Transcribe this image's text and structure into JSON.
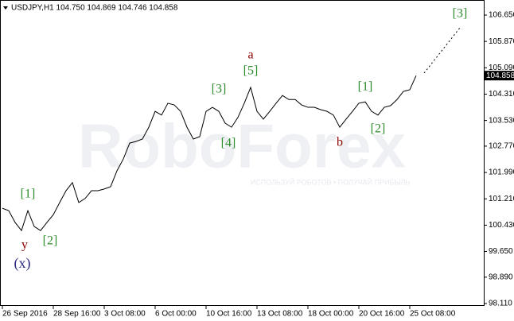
{
  "chart_data": {
    "type": "line",
    "title": "USDJPY,H1  104.750 104.869 104.746 104.858",
    "watermark": "RoboForex",
    "watermark_sub": "ИСПОЛЬЗУЙ РОБОТОВ • ПОЛУЧАЙ ПРИБЫЛЬ",
    "categories": [
      "26 Sep 2016",
      null,
      null,
      null,
      null,
      null,
      null,
      null,
      "28 Sep 16:00",
      null,
      null,
      null,
      null,
      null,
      null,
      null,
      "3 Oct 08:00",
      null,
      null,
      null,
      null,
      null,
      null,
      null,
      "6 Oct 00:00",
      null,
      null,
      null,
      null,
      null,
      null,
      null,
      "10 Oct 16:00",
      null,
      null,
      null,
      null,
      null,
      null,
      null,
      "13 Oct 08:00",
      null,
      null,
      null,
      null,
      null,
      null,
      null,
      "18 Oct 00:00",
      null,
      null,
      null,
      null,
      null,
      null,
      null,
      "20 Oct 16:00",
      null,
      null,
      null,
      null,
      null,
      null,
      null,
      "25 Oct 08:00",
      null
    ],
    "series": [
      {
        "name": "USDJPY",
        "color": "#000000",
        "values": [
          100.93,
          100.86,
          100.51,
          100.27,
          100.86,
          100.39,
          100.27,
          100.51,
          100.74,
          101.1,
          101.45,
          101.69,
          101.1,
          101.22,
          101.45,
          101.45,
          101.5,
          101.57,
          102.04,
          102.39,
          102.86,
          102.91,
          102.98,
          103.33,
          103.8,
          103.69,
          104.04,
          103.99,
          103.8,
          103.33,
          102.98,
          103.05,
          103.8,
          103.92,
          103.8,
          103.45,
          103.33,
          103.62,
          104.04,
          104.51,
          103.8,
          103.57,
          103.8,
          104.04,
          104.27,
          104.15,
          104.15,
          103.99,
          103.92,
          103.92,
          103.85,
          103.8,
          103.69,
          103.33,
          103.57,
          103.8,
          104.04,
          104.08,
          103.8,
          103.69,
          103.92,
          103.97,
          104.15,
          104.39,
          104.44,
          104.858
        ]
      }
    ],
    "current_price": 104.858,
    "ylim": [
      98.11,
      106.65
    ],
    "yticks": [
      {
        "value": 98.11,
        "label": "98.110"
      },
      {
        "value": 98.89,
        "label": "98.890"
      },
      {
        "value": 99.65,
        "label": "99.650"
      },
      {
        "value": 100.43,
        "label": "100.430"
      },
      {
        "value": 101.21,
        "label": "101.210"
      },
      {
        "value": 101.99,
        "label": "101.990"
      },
      {
        "value": 102.77,
        "label": "102.770"
      },
      {
        "value": 103.53,
        "label": "103.530"
      },
      {
        "value": 104.31,
        "label": "104.310"
      },
      {
        "value": 105.09,
        "label": "105.090"
      },
      {
        "value": 105.87,
        "label": "105.870"
      },
      {
        "value": 106.65,
        "label": "106.650"
      }
    ],
    "annotations": [
      "[3]",
      "a",
      "[5]",
      "[3]",
      "[1]",
      "[4]",
      "b",
      "[2]",
      "[1]",
      "[2]",
      "y",
      "(x)"
    ]
  }
}
